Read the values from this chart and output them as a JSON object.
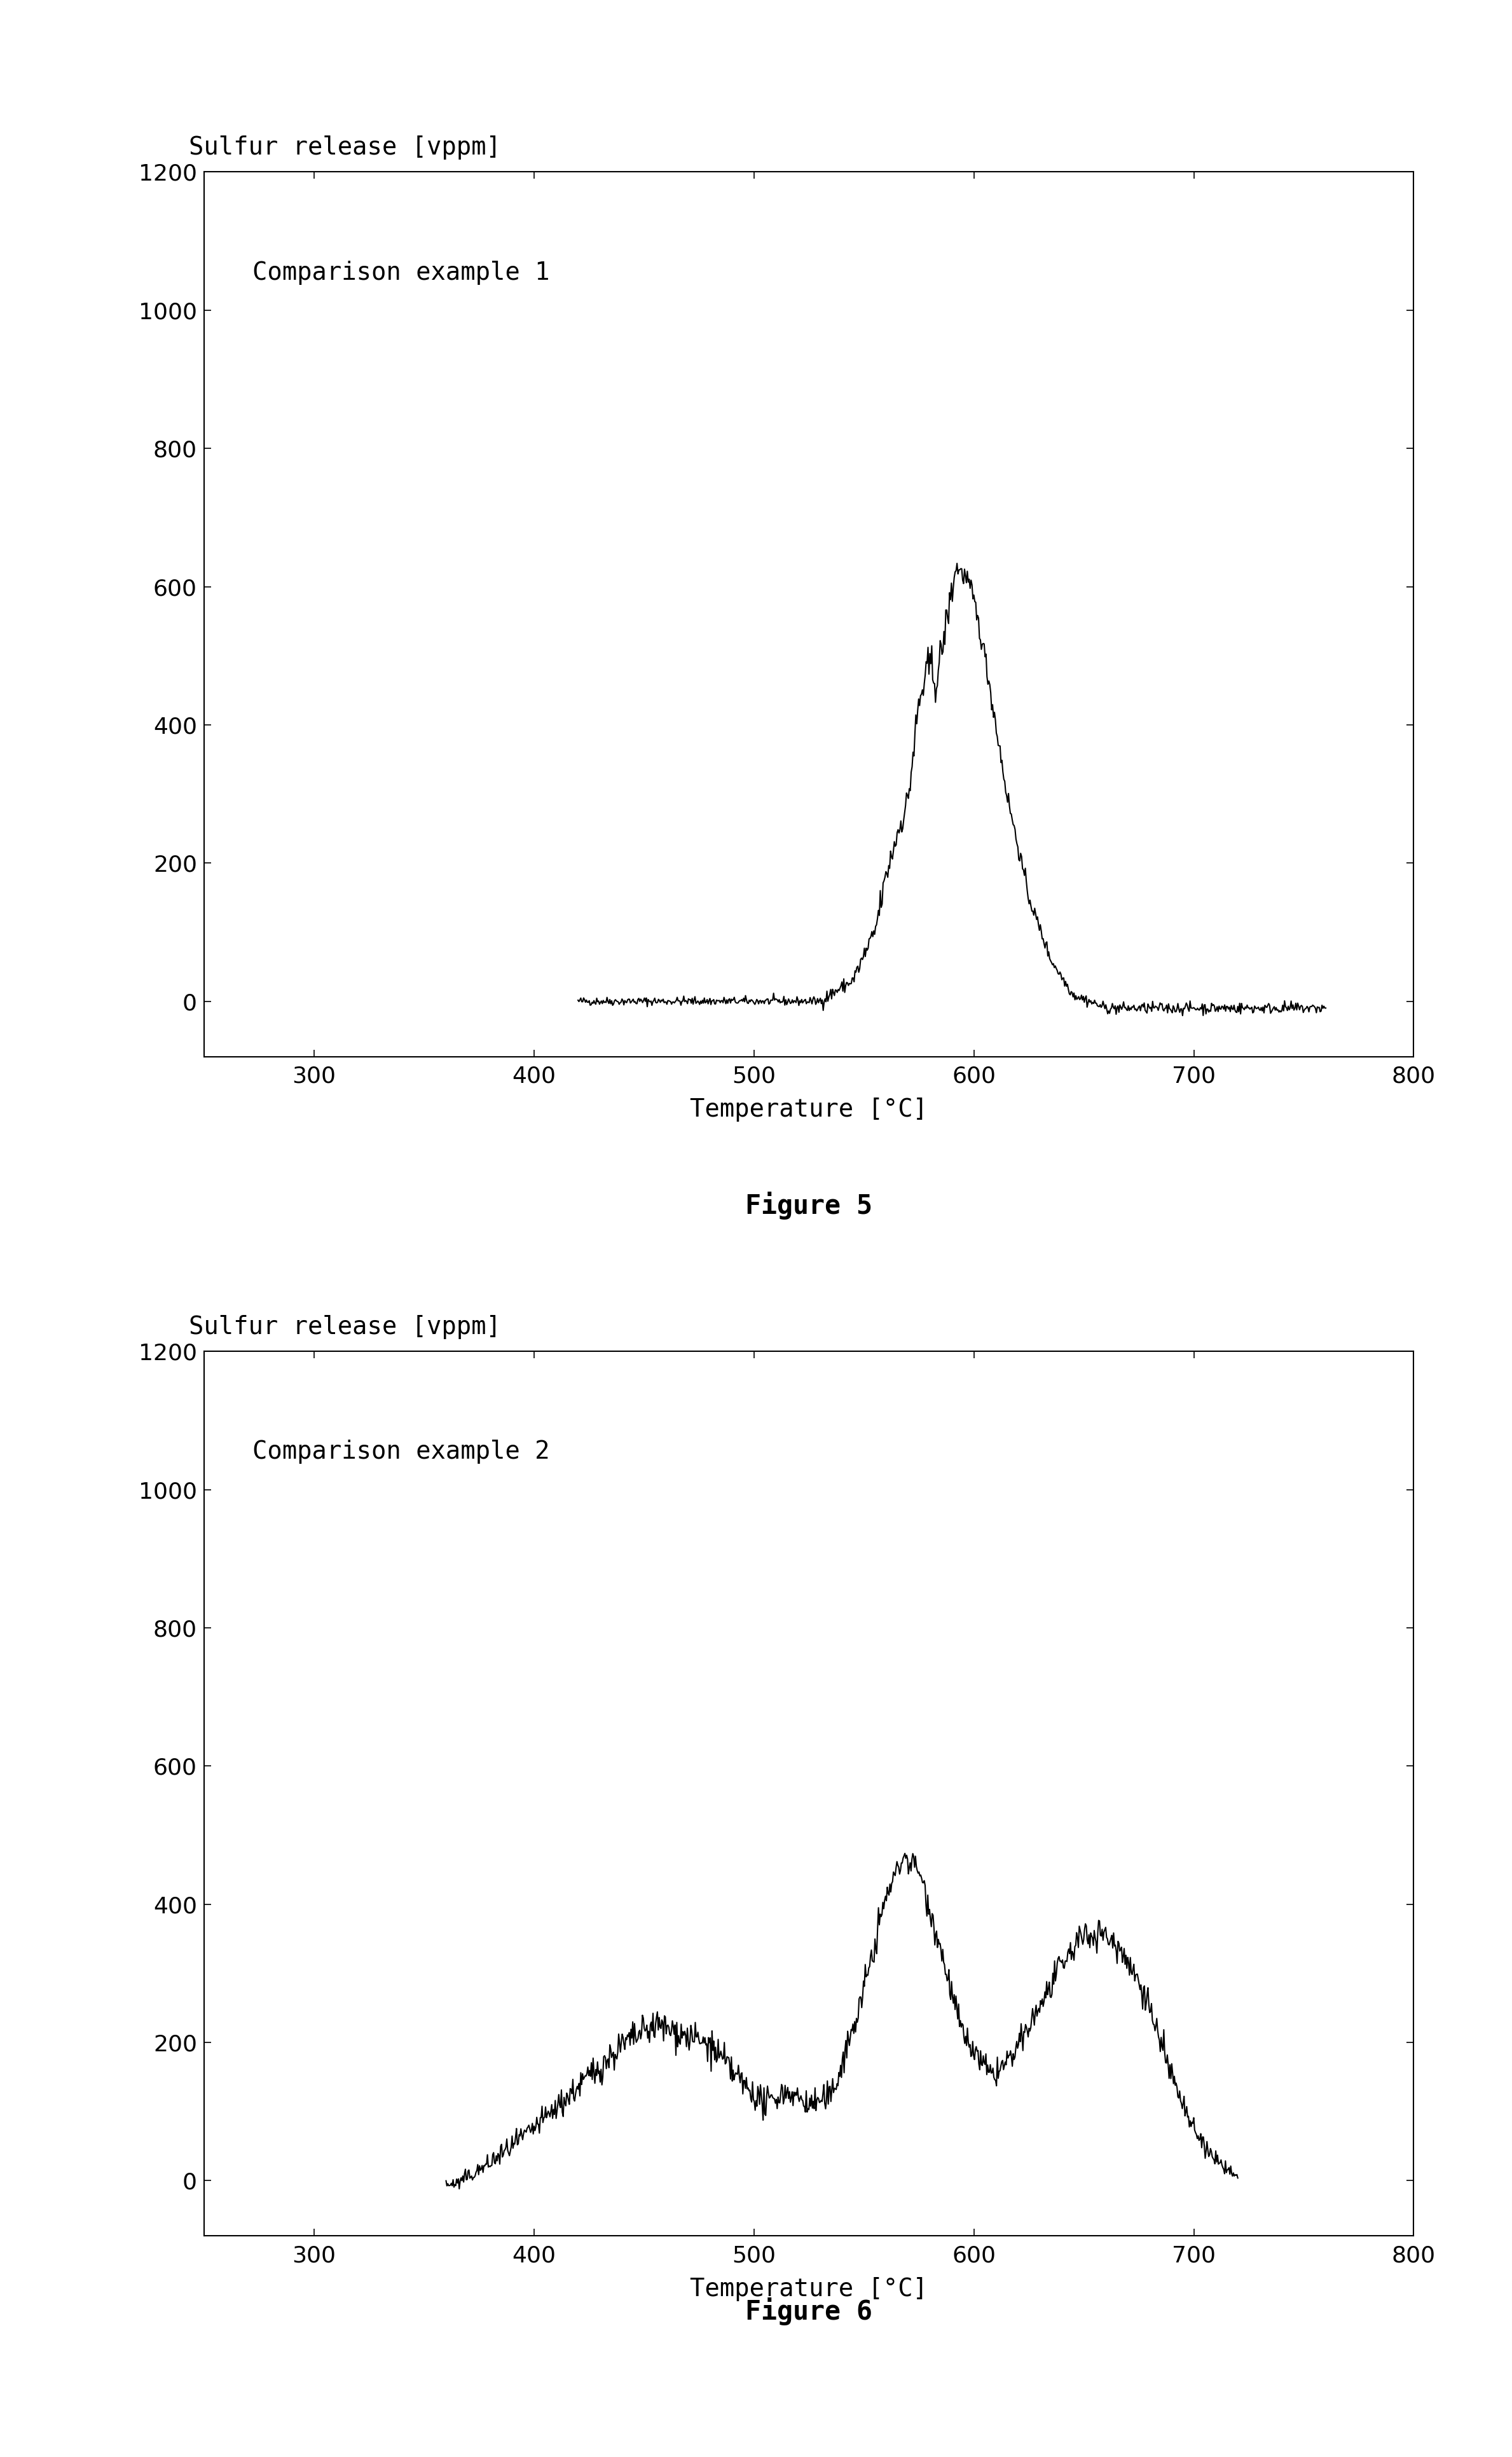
{
  "fig1": {
    "title": "Comparison example 1",
    "ylabel": "Sulfur release [vppm]",
    "xlabel": "Temperature [°C]",
    "figure_label": "Figure 5",
    "xlim": [
      250,
      800
    ],
    "ylim": [
      -80,
      1200
    ],
    "xticks": [
      300,
      400,
      500,
      600,
      700,
      800
    ],
    "yticks": [
      0,
      200,
      400,
      600,
      800,
      1000,
      1200
    ]
  },
  "fig2": {
    "title": "Comparison example 2",
    "ylabel": "Sulfur release [vppm]",
    "xlabel": "Temperature [°C]",
    "figure_label": "Figure 6",
    "xlim": [
      250,
      800
    ],
    "ylim": [
      -80,
      1200
    ],
    "xticks": [
      300,
      400,
      500,
      600,
      700,
      800
    ],
    "yticks": [
      0,
      200,
      400,
      600,
      800,
      1000,
      1200
    ]
  },
  "line_color": "#000000",
  "bg_color": "#ffffff",
  "text_color": "#000000",
  "font_family": "monospace",
  "title_fontsize": 28,
  "label_fontsize": 28,
  "tick_fontsize": 26,
  "figure_label_fontsize": 30,
  "annotation_fontsize": 28
}
